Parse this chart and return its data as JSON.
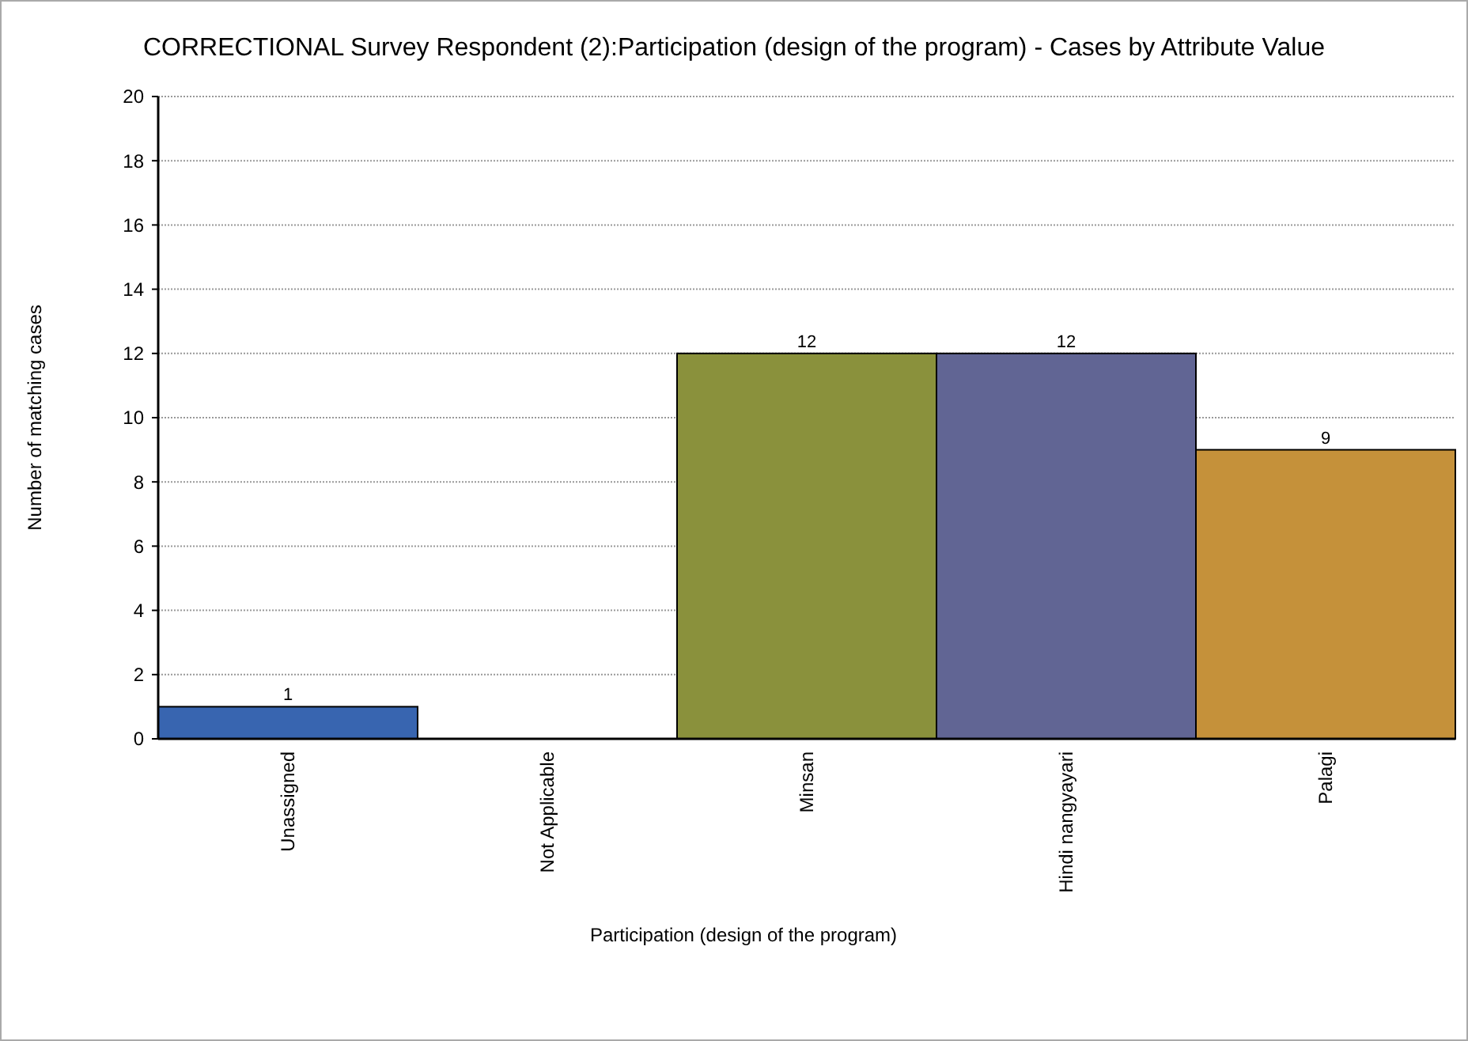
{
  "chart_data": {
    "type": "bar",
    "title": "CORRECTIONAL Survey Respondent (2):Participation (design of the program) - Cases by Attribute Value",
    "xlabel": "Participation (design of the program)",
    "ylabel": "Number of matching cases",
    "categories": [
      "Unassigned",
      "Not Applicable",
      "Minsan",
      "Hindi nangyayari",
      "Palagi"
    ],
    "values": [
      1,
      0,
      12,
      12,
      9
    ],
    "colors": [
      "#3865b0",
      "#a04040",
      "#8a913c",
      "#616594",
      "#c5913a"
    ],
    "value_labels": [
      "1",
      null,
      "12",
      "12",
      "9"
    ],
    "ylim": [
      0,
      20
    ],
    "yticks": [
      0,
      2,
      4,
      6,
      8,
      10,
      12,
      14,
      16,
      18,
      20
    ],
    "grid": "y"
  }
}
